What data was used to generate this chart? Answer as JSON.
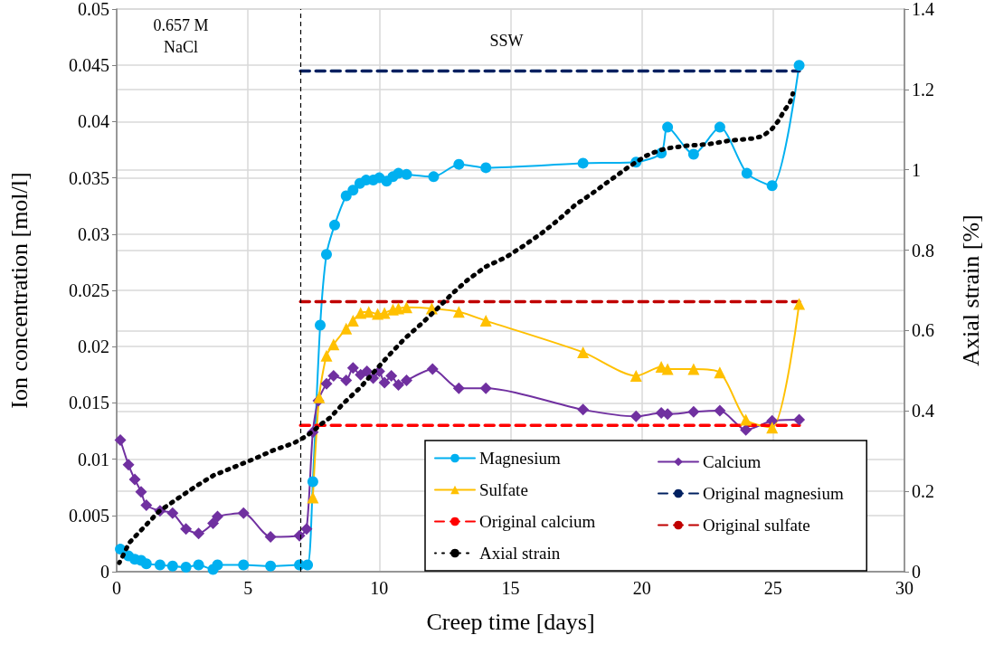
{
  "chart_data": {
    "type": "line",
    "xlabel": "Creep time [days]",
    "ylabel": "Ion concentration [mol/l]",
    "y2label": "Axial strain [%]",
    "xlim": [
      0,
      30
    ],
    "xticks": [
      0,
      5,
      10,
      15,
      20,
      25,
      30
    ],
    "ylim": [
      0,
      0.05
    ],
    "yticks": [
      0,
      0.005,
      0.01,
      0.015,
      0.02,
      0.025,
      0.03,
      0.035,
      0.04,
      0.045,
      0.05
    ],
    "y2lim": [
      0,
      1.4
    ],
    "y2ticks": [
      0,
      0.2,
      0.4,
      0.6,
      0.8,
      1,
      1.2,
      1.4
    ],
    "grid": true,
    "legend": "bottom right",
    "annotations": [
      "0.657 M\nNaCl",
      "SSW"
    ],
    "ref_lines": [
      {
        "axis": "x",
        "value": 7,
        "label": null,
        "color": "#000000",
        "line_style": "dashed"
      }
    ],
    "series": [
      {
        "name": "Magnesium",
        "color": "#00b0f0",
        "marker": "circle",
        "line_style": "solid",
        "x": [
          0.14,
          0.45,
          0.69,
          0.93,
          1.13,
          1.65,
          2.13,
          2.64,
          3.12,
          3.67,
          3.84,
          4.83,
          5.86,
          6.96,
          7.27,
          7.47,
          7.75,
          7.99,
          8.3,
          8.74,
          9.0,
          9.26,
          9.5,
          9.77,
          10.0,
          10.28,
          10.52,
          10.73,
          11.04,
          12.07,
          13.03,
          14.06,
          17.76,
          19.78,
          20.74,
          20.98,
          21.97,
          22.97,
          24.0,
          24.96,
          25.99
        ],
        "values": [
          0.002,
          0.0014,
          0.0011,
          0.001,
          0.0007,
          0.0006,
          0.0005,
          0.0004,
          0.0006,
          0.0002,
          0.0006,
          0.0006,
          0.0005,
          0.0006,
          0.0006,
          0.008,
          0.0219,
          0.0282,
          0.0308,
          0.0334,
          0.0339,
          0.0345,
          0.0348,
          0.0348,
          0.035,
          0.0347,
          0.0351,
          0.0354,
          0.0353,
          0.0351,
          0.0362,
          0.0359,
          0.0363,
          0.0364,
          0.0372,
          0.0395,
          0.0371,
          0.0395,
          0.0354,
          0.0343,
          0.045
        ]
      },
      {
        "name": "Calcium",
        "color": "#7030a0",
        "marker": "diamond",
        "line_style": "solid",
        "x": [
          0.14,
          0.45,
          0.69,
          0.93,
          1.13,
          1.65,
          2.13,
          2.64,
          3.12,
          3.67,
          3.84,
          4.83,
          5.86,
          6.96,
          7.23,
          7.47,
          7.68,
          7.99,
          8.26,
          8.74,
          9.0,
          9.29,
          9.53,
          9.77,
          10.0,
          10.2,
          10.46,
          10.73,
          11.04,
          12.03,
          13.03,
          14.06,
          17.76,
          19.78,
          20.74,
          20.98,
          21.97,
          22.97,
          23.96,
          24.96,
          25.99
        ],
        "values": [
          0.0117,
          0.0095,
          0.0082,
          0.0071,
          0.0059,
          0.0054,
          0.0052,
          0.0038,
          0.0034,
          0.0043,
          0.0049,
          0.0052,
          0.0031,
          0.0032,
          0.0038,
          0.0124,
          0.0152,
          0.0167,
          0.0174,
          0.017,
          0.0181,
          0.0175,
          0.0178,
          0.0172,
          0.0178,
          0.0168,
          0.0174,
          0.0166,
          0.017,
          0.018,
          0.0163,
          0.0163,
          0.0144,
          0.0138,
          0.0141,
          0.014,
          0.0142,
          0.0143,
          0.0126,
          0.0134,
          0.0135
        ]
      },
      {
        "name": "Sulfate",
        "color": "#ffc000",
        "marker": "triangle",
        "line_style": "solid",
        "x": [
          7.47,
          7.71,
          7.99,
          8.26,
          8.74,
          9.0,
          9.29,
          9.6,
          9.94,
          10.2,
          10.52,
          10.73,
          11.04,
          12.0,
          13.03,
          14.06,
          17.76,
          19.78,
          20.74,
          20.98,
          21.97,
          22.97,
          23.96,
          24.96,
          25.99
        ],
        "values": [
          0.0066,
          0.0155,
          0.0192,
          0.0202,
          0.0216,
          0.0223,
          0.023,
          0.0231,
          0.0229,
          0.023,
          0.0233,
          0.0234,
          0.0235,
          0.0234,
          0.0231,
          0.0223,
          0.0195,
          0.0174,
          0.0182,
          0.018,
          0.018,
          0.0177,
          0.0135,
          0.0128,
          0.0238
        ]
      },
      {
        "name": "Original magnesium",
        "color": "#002060",
        "marker": "none",
        "line_style": "dashed",
        "x": [
          7,
          26
        ],
        "values": [
          0.0445,
          0.0445
        ]
      },
      {
        "name": "Original calcium",
        "color": "#ff0000",
        "marker": "none",
        "line_style": "dashed",
        "x": [
          7,
          26
        ],
        "values": [
          0.013,
          0.013
        ]
      },
      {
        "name": "Original sulfate",
        "color": "#c00000",
        "marker": "none",
        "line_style": "dashed",
        "x": [
          7,
          26
        ],
        "values": [
          0.024,
          0.024
        ]
      },
      {
        "name": "Axial strain",
        "color": "#000000",
        "marker": "none",
        "line_style": "dotted",
        "axis": "y2",
        "x": [
          0.1,
          0.48,
          1.03,
          1.61,
          2.3,
          2.98,
          3.7,
          4.46,
          5.21,
          5.96,
          6.75,
          7.13,
          7.47,
          7.78,
          8.12,
          8.67,
          9.29,
          9.84,
          10.39,
          10.97,
          11.59,
          12.2,
          12.75,
          13.4,
          14.06,
          14.81,
          15.5,
          16.18,
          16.83,
          17.45,
          18.1,
          18.79,
          19.47,
          20.16,
          20.5,
          20.91,
          21.73,
          22.56,
          23.38,
          24.24,
          24.61,
          24.96,
          25.2,
          25.4,
          25.64,
          25.75
        ],
        "values": [
          0.022,
          0.072,
          0.11,
          0.15,
          0.181,
          0.211,
          0.24,
          0.26,
          0.28,
          0.302,
          0.32,
          0.334,
          0.349,
          0.367,
          0.383,
          0.421,
          0.459,
          0.5,
          0.54,
          0.58,
          0.616,
          0.654,
          0.69,
          0.728,
          0.759,
          0.782,
          0.811,
          0.842,
          0.876,
          0.912,
          0.941,
          0.974,
          1.006,
          1.035,
          1.044,
          1.053,
          1.06,
          1.064,
          1.073,
          1.078,
          1.084,
          1.102,
          1.122,
          1.145,
          1.167,
          1.19
        ]
      }
    ]
  }
}
